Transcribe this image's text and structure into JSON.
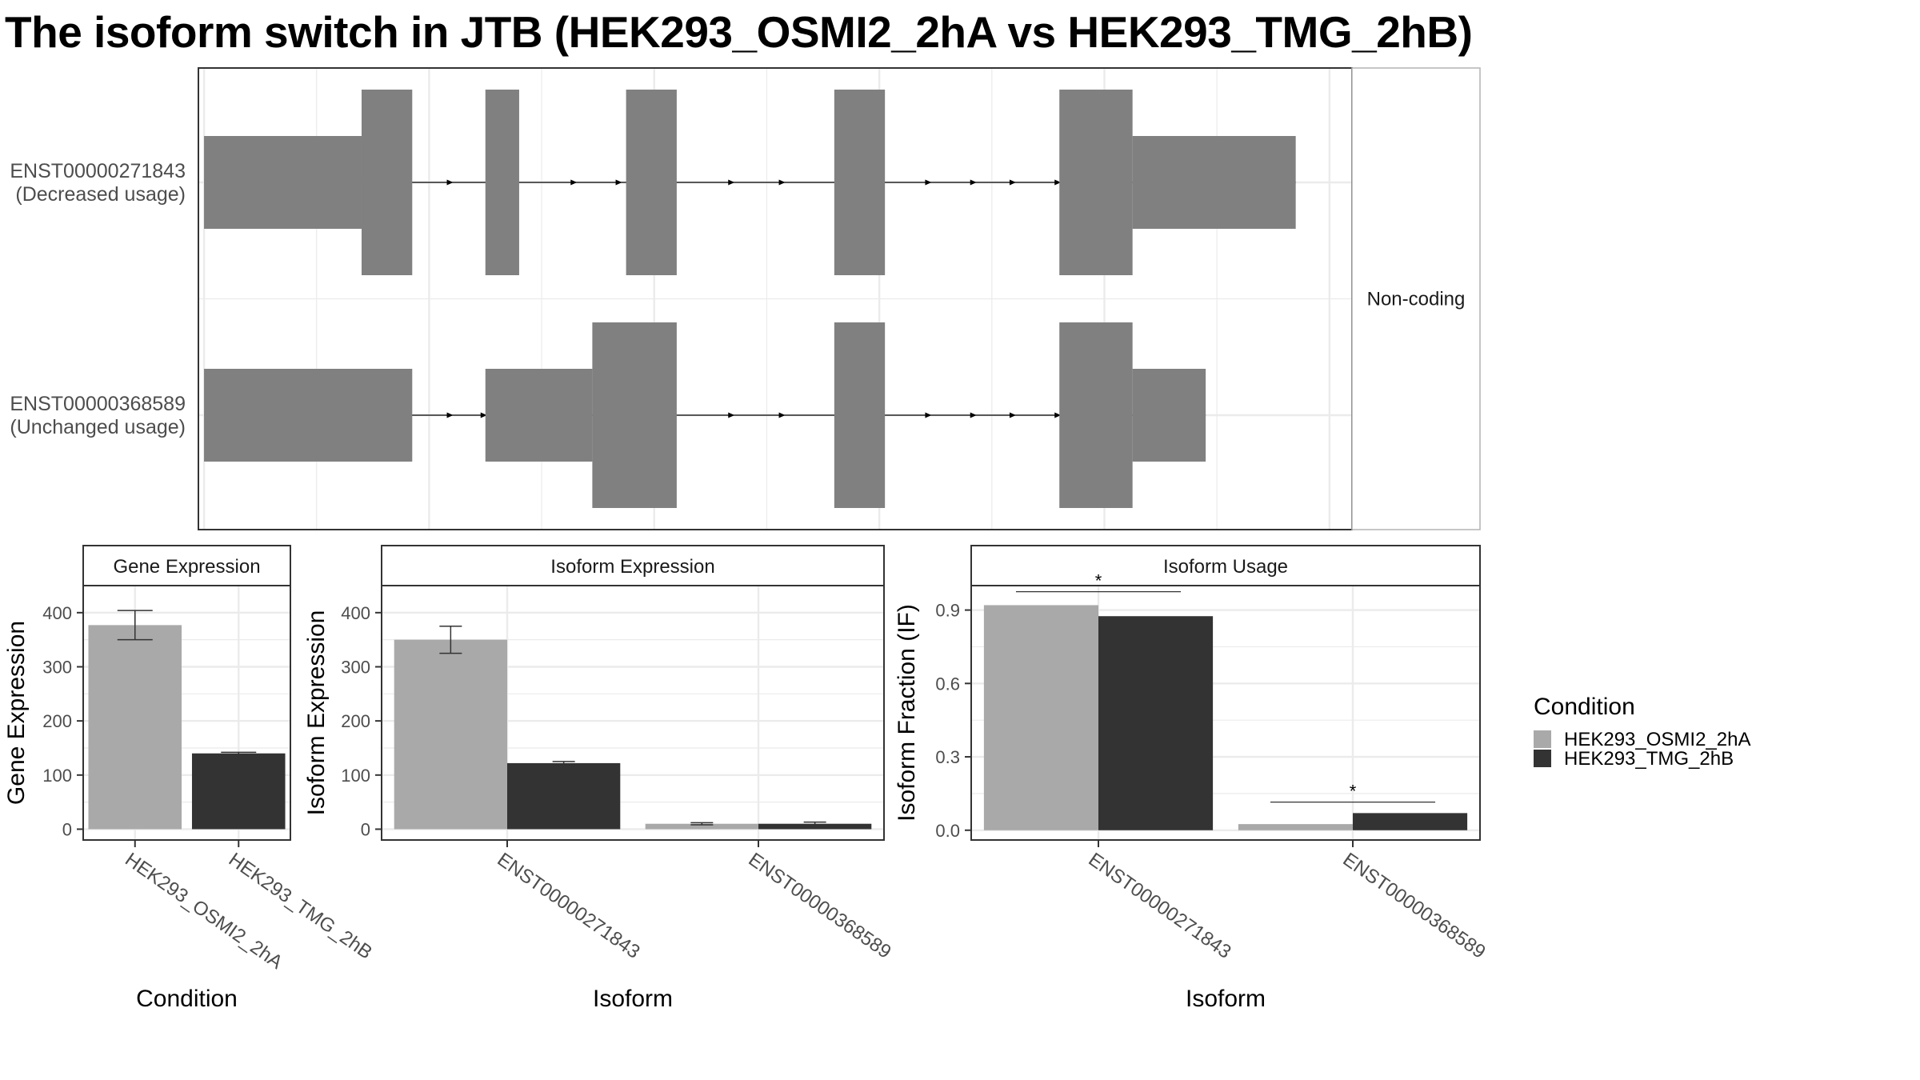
{
  "title": "The isoform switch in JTB (HEK293_OSMI2_2hA vs HEK293_TMG_2hB)",
  "colors": {
    "exon": "#808080",
    "condition_a": "#a9a9a9",
    "condition_b": "#333333",
    "grid": "#ebebeb",
    "panel_border": "#333333",
    "strip_fill": "#ffffff"
  },
  "chart_data": [
    {
      "type": "gene-structure",
      "facet_label": "Non-coding",
      "transcripts": [
        {
          "id": "ENST00000271843",
          "label_line1": "ENST00000271843",
          "label_line2": "(Decreased usage)",
          "exons": [
            {
              "start": 0.0,
              "end": 1.4,
              "kind": "utr"
            },
            {
              "start": 1.4,
              "end": 1.85,
              "kind": "cds"
            },
            {
              "start": 2.5,
              "end": 2.8,
              "kind": "cds"
            },
            {
              "start": 3.75,
              "end": 4.2,
              "kind": "cds"
            },
            {
              "start": 5.6,
              "end": 6.05,
              "kind": "cds"
            },
            {
              "start": 7.6,
              "end": 8.25,
              "kind": "cds"
            },
            {
              "start": 8.25,
              "end": 9.7,
              "kind": "utr"
            }
          ],
          "arrows": [
            2.2,
            2.55,
            3.3,
            3.7,
            4.7,
            5.15,
            6.45,
            6.85,
            7.2,
            7.6
          ]
        },
        {
          "id": "ENST00000368589",
          "label_line1": "ENST00000368589",
          "label_line2": "(Unchanged usage)",
          "exons": [
            {
              "start": 0.0,
              "end": 1.85,
              "kind": "utr"
            },
            {
              "start": 2.5,
              "end": 3.45,
              "kind": "utr"
            },
            {
              "start": 3.45,
              "end": 4.2,
              "kind": "cds"
            },
            {
              "start": 5.6,
              "end": 6.05,
              "kind": "cds"
            },
            {
              "start": 7.6,
              "end": 8.25,
              "kind": "cds"
            },
            {
              "start": 8.25,
              "end": 8.9,
              "kind": "utr"
            }
          ],
          "arrows": [
            2.2,
            2.5,
            4.7,
            5.15,
            6.45,
            6.85,
            7.2,
            7.6
          ]
        }
      ],
      "xlim": [
        -0.05,
        10.2
      ]
    },
    {
      "type": "bar",
      "strip": "Gene Expression",
      "xlabel": "Condition",
      "ylabel": "Gene Expression",
      "ylim": [
        -20,
        450
      ],
      "yticks": [
        0,
        100,
        200,
        300,
        400
      ],
      "categories": [
        "HEK293_OSMI2_2hA",
        "HEK293_TMG_2hB"
      ],
      "bars": [
        {
          "category": "HEK293_OSMI2_2hA",
          "series": "HEK293_OSMI2_2hA",
          "value": 377,
          "err": [
            350,
            404
          ]
        },
        {
          "category": "HEK293_TMG_2hB",
          "series": "HEK293_TMG_2hB",
          "value": 140,
          "err": [
            137,
            142
          ]
        }
      ]
    },
    {
      "type": "bar",
      "strip": "Isoform Expression",
      "xlabel": "Isoform",
      "ylabel": "Isoform Expression",
      "ylim": [
        -20,
        450
      ],
      "yticks": [
        0,
        100,
        200,
        300,
        400
      ],
      "categories": [
        "ENST00000271843",
        "ENST00000368589"
      ],
      "series": [
        {
          "name": "HEK293_OSMI2_2hA",
          "values": [
            350,
            10
          ],
          "err": [
            [
              325,
              375
            ],
            [
              8,
              12
            ]
          ]
        },
        {
          "name": "HEK293_TMG_2hB",
          "values": [
            122,
            10
          ],
          "err": [
            [
              119,
              125
            ],
            [
              7,
              13
            ]
          ]
        }
      ]
    },
    {
      "type": "bar",
      "strip": "Isoform Usage",
      "xlabel": "Isoform",
      "ylabel": "Isoform Fraction (IF)",
      "ylim": [
        -0.04,
        1.0
      ],
      "yticks": [
        0.0,
        0.3,
        0.6,
        0.9
      ],
      "ytick_labels": [
        "0.0",
        "0.3",
        "0.6",
        "0.9"
      ],
      "categories": [
        "ENST00000271843",
        "ENST00000368589"
      ],
      "series": [
        {
          "name": "HEK293_OSMI2_2hA",
          "values": [
            0.92,
            0.025
          ]
        },
        {
          "name": "HEK293_TMG_2hB",
          "values": [
            0.875,
            0.07
          ]
        }
      ],
      "significance": [
        {
          "category": "ENST00000271843",
          "y": 0.975,
          "label": "*"
        },
        {
          "category": "ENST00000368589",
          "y": 0.115,
          "label": "*"
        }
      ]
    }
  ],
  "legend": {
    "title": "Condition",
    "entries": [
      {
        "label": "HEK293_OSMI2_2hA",
        "color": "#a9a9a9"
      },
      {
        "label": "HEK293_TMG_2hB",
        "color": "#333333"
      }
    ]
  }
}
